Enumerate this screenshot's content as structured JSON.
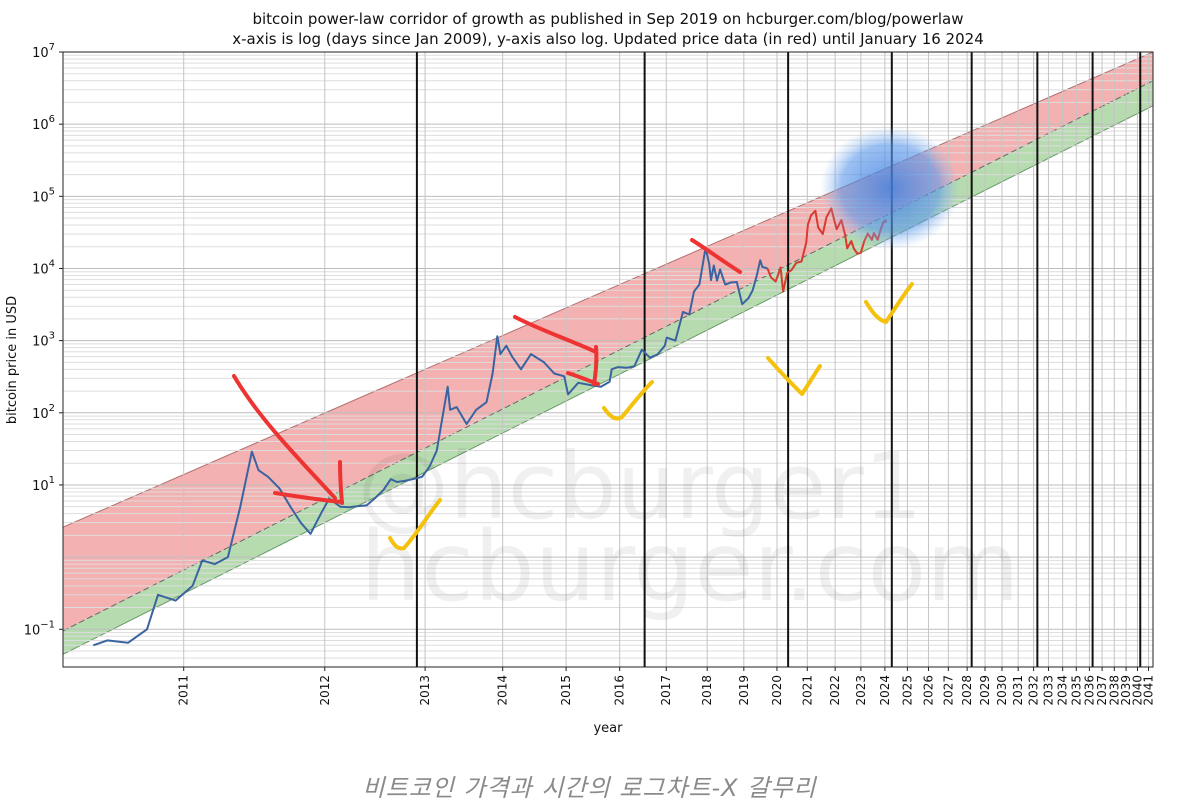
{
  "chart_data": {
    "type": "line",
    "title": "bitcoin power-law corridor of growth as published in Sep 2019 on hcburger.com/blog/powerlaw",
    "subtitle": "x-axis is log (days since Jan 2009), y-axis also log. Updated price data (in red) until January 16 2024",
    "xlabel": "year",
    "ylabel": "bitcoin price in USD",
    "x_scale": "log",
    "y_scale": "log",
    "ylim": [
      0.03,
      10000000
    ],
    "xlim": [
      "2010-06",
      "2041-06"
    ],
    "y_ticks": [
      {
        "value": 0.1,
        "base": "10",
        "exp": "−1"
      },
      {
        "value": 10,
        "base": "10",
        "exp": "1"
      },
      {
        "value": 100,
        "base": "10",
        "exp": "2"
      },
      {
        "value": 1000,
        "base": "10",
        "exp": "3"
      },
      {
        "value": 10000,
        "base": "10",
        "exp": "4"
      },
      {
        "value": 100000,
        "base": "10",
        "exp": "5"
      },
      {
        "value": 1000000,
        "base": "10",
        "exp": "6"
      },
      {
        "value": 10000000,
        "base": "10",
        "exp": "7"
      }
    ],
    "x_ticks": [
      "2011",
      "2012",
      "2013",
      "2014",
      "2015",
      "2016",
      "2017",
      "2018",
      "2019",
      "2020",
      "2021",
      "2022",
      "2023",
      "2024",
      "2025",
      "2026",
      "2027",
      "2028",
      "2029",
      "2030",
      "2031",
      "2032",
      "2033",
      "2034",
      "2035",
      "2036",
      "2037",
      "2038",
      "2039",
      "2040",
      "2041"
    ],
    "halving_lines": [
      "2012-11-28",
      "2016-07-09",
      "2020-05-11",
      "2024-04-20",
      "2028-04",
      "2032-04",
      "2036-04",
      "2040-04"
    ],
    "grid": true,
    "corridor": {
      "upper_band_color": "#f2a3a3",
      "lower_band_color": "#a8d5a0",
      "upper": [
        [
          "2010-06",
          2.6
        ],
        [
          "2041-06",
          10000000
        ]
      ],
      "middle": [
        [
          "2010-06",
          0.095
        ],
        [
          "2041-06",
          4000000
        ]
      ],
      "lower": [
        [
          "2010-06",
          0.045
        ],
        [
          "2041-06",
          1800000
        ]
      ]
    },
    "series": [
      {
        "color": "#3a64a0",
        "points": [
          [
            "2010-07-18",
            0.06
          ],
          [
            "2010-08-10",
            0.07
          ],
          [
            "2010-09-15",
            0.065
          ],
          [
            "2010-10-20",
            0.1
          ],
          [
            "2010-11-10",
            0.3
          ],
          [
            "2010-12-15",
            0.25
          ],
          [
            "2011-01-20",
            0.4
          ],
          [
            "2011-02-10",
            0.9
          ],
          [
            "2011-03-10",
            0.8
          ],
          [
            "2011-04-10",
            1.0
          ],
          [
            "2011-05-10",
            5
          ],
          [
            "2011-06-08",
            29
          ],
          [
            "2011-06-25",
            16
          ],
          [
            "2011-07-20",
            13
          ],
          [
            "2011-08-20",
            9
          ],
          [
            "2011-09-20",
            5
          ],
          [
            "2011-10-20",
            3
          ],
          [
            "2011-11-18",
            2.1
          ],
          [
            "2011-12-20",
            4
          ],
          [
            "2012-01-15",
            6.5
          ],
          [
            "2012-02-20",
            5
          ],
          [
            "2012-03-20",
            4.9
          ],
          [
            "2012-04-20",
            5.1
          ],
          [
            "2012-05-20",
            5.2
          ],
          [
            "2012-06-20",
            6.6
          ],
          [
            "2012-07-20",
            8.5
          ],
          [
            "2012-08-17",
            12
          ],
          [
            "2012-09-10",
            11
          ],
          [
            "2012-10-15",
            11.5
          ],
          [
            "2012-11-28",
            12.4
          ],
          [
            "2012-12-20",
            13
          ],
          [
            "2013-01-20",
            18
          ],
          [
            "2013-02-20",
            30
          ],
          [
            "2013-04-09",
            230
          ],
          [
            "2013-04-20",
            110
          ],
          [
            "2013-05-20",
            120
          ],
          [
            "2013-07-05",
            70
          ],
          [
            "2013-08-20",
            110
          ],
          [
            "2013-10-10",
            140
          ],
          [
            "2013-11-10",
            350
          ],
          [
            "2013-12-04",
            1150
          ],
          [
            "2013-12-20",
            650
          ],
          [
            "2014-01-20",
            850
          ],
          [
            "2014-02-20",
            600
          ],
          [
            "2014-04-10",
            400
          ],
          [
            "2014-06-05",
            650
          ],
          [
            "2014-08-20",
            500
          ],
          [
            "2014-10-20",
            350
          ],
          [
            "2014-12-20",
            320
          ],
          [
            "2015-01-14",
            180
          ],
          [
            "2015-03-20",
            260
          ],
          [
            "2015-06-20",
            240
          ],
          [
            "2015-08-20",
            230
          ],
          [
            "2015-10-20",
            270
          ],
          [
            "2015-11-04",
            400
          ],
          [
            "2015-12-20",
            430
          ],
          [
            "2016-02-20",
            420
          ],
          [
            "2016-04-20",
            440
          ],
          [
            "2016-06-17",
            750
          ],
          [
            "2016-08-20",
            580
          ],
          [
            "2016-10-20",
            640
          ],
          [
            "2016-12-20",
            850
          ],
          [
            "2017-01-05",
            1100
          ],
          [
            "2017-03-20",
            1000
          ],
          [
            "2017-05-25",
            2500
          ],
          [
            "2017-07-20",
            2300
          ],
          [
            "2017-09-01",
            4800
          ],
          [
            "2017-10-20",
            6000
          ],
          [
            "2017-12-17",
            19500
          ],
          [
            "2018-01-20",
            11500
          ],
          [
            "2018-02-06",
            6900
          ],
          [
            "2018-03-05",
            11000
          ],
          [
            "2018-04-05",
            6800
          ],
          [
            "2018-05-05",
            9700
          ],
          [
            "2018-06-25",
            6000
          ],
          [
            "2018-08-20",
            6400
          ],
          [
            "2018-10-20",
            6500
          ],
          [
            "2018-12-15",
            3200
          ],
          [
            "2019-02-20",
            3900
          ],
          [
            "2019-04-05",
            5000
          ],
          [
            "2019-05-20",
            8000
          ],
          [
            "2019-06-26",
            13000
          ],
          [
            "2019-07-20",
            10500
          ],
          [
            "2019-09-15",
            10000
          ]
        ]
      },
      {
        "color": "#d83a2e",
        "points": [
          [
            "2019-09-15",
            10000
          ],
          [
            "2019-10-25",
            7500
          ],
          [
            "2019-12-18",
            6600
          ],
          [
            "2020-02-12",
            10300
          ],
          [
            "2020-03-13",
            4800
          ],
          [
            "2020-04-30",
            8700
          ],
          [
            "2020-06-20",
            9500
          ],
          [
            "2020-08-17",
            12000
          ],
          [
            "2020-10-20",
            12500
          ],
          [
            "2020-12-20",
            23000
          ],
          [
            "2021-01-08",
            41000
          ],
          [
            "2021-02-20",
            55000
          ],
          [
            "2021-04-14",
            63000
          ],
          [
            "2021-05-20",
            37000
          ],
          [
            "2021-07-20",
            30000
          ],
          [
            "2021-09-05",
            51000
          ],
          [
            "2021-11-10",
            68000
          ],
          [
            "2021-12-20",
            47000
          ],
          [
            "2022-01-22",
            35000
          ],
          [
            "2022-03-28",
            47000
          ],
          [
            "2022-05-20",
            29000
          ],
          [
            "2022-06-18",
            19000
          ],
          [
            "2022-08-15",
            24000
          ],
          [
            "2022-09-20",
            19000
          ],
          [
            "2022-11-09",
            16000
          ],
          [
            "2022-12-30",
            16500
          ],
          [
            "2023-02-20",
            24000
          ],
          [
            "2023-04-14",
            30500
          ],
          [
            "2023-06-15",
            25000
          ],
          [
            "2023-07-15",
            31000
          ],
          [
            "2023-09-11",
            25000
          ],
          [
            "2023-10-25",
            34000
          ],
          [
            "2023-12-08",
            44000
          ],
          [
            "2024-01-11",
            46500
          ],
          [
            "2024-01-16",
            43000
          ]
        ]
      }
    ],
    "watermark": [
      "@hcburger1",
      "hcburger.com"
    ],
    "annotation_colors": {
      "red_marks": "#ee3333",
      "yellow_checks": "#f4c20d",
      "blue_blob": "#4a8fe6"
    }
  },
  "caption": "비트코인 가격과 시간의 로그차트-X 갈무리"
}
